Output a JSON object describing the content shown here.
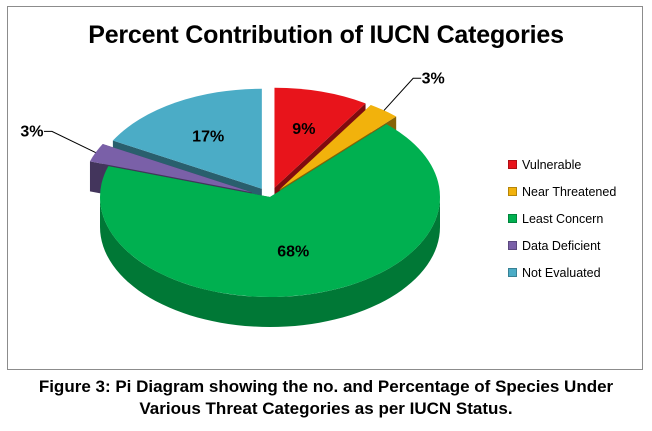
{
  "chart_data": {
    "type": "pie",
    "three_d": true,
    "exploded": true,
    "title": "Percent Contribution of IUCN Categories",
    "categories": [
      "Vulnerable",
      "Near Threatened",
      "Least Concern",
      "Data Deficient",
      "Not Evaluated"
    ],
    "values": [
      9,
      3,
      68,
      3,
      17
    ],
    "data_labels": [
      "9%",
      "3%",
      "68%",
      "3%",
      "17%"
    ],
    "colors": [
      "#e8141b",
      "#f2b20c",
      "#00b050",
      "#7a60a8",
      "#4bacc6"
    ],
    "legend_position": "right"
  },
  "caption": {
    "line1": "Figure 3: Pi Diagram showing the no. and Percentage of Species Under",
    "line2": "Various Threat Categories as per IUCN Status."
  }
}
